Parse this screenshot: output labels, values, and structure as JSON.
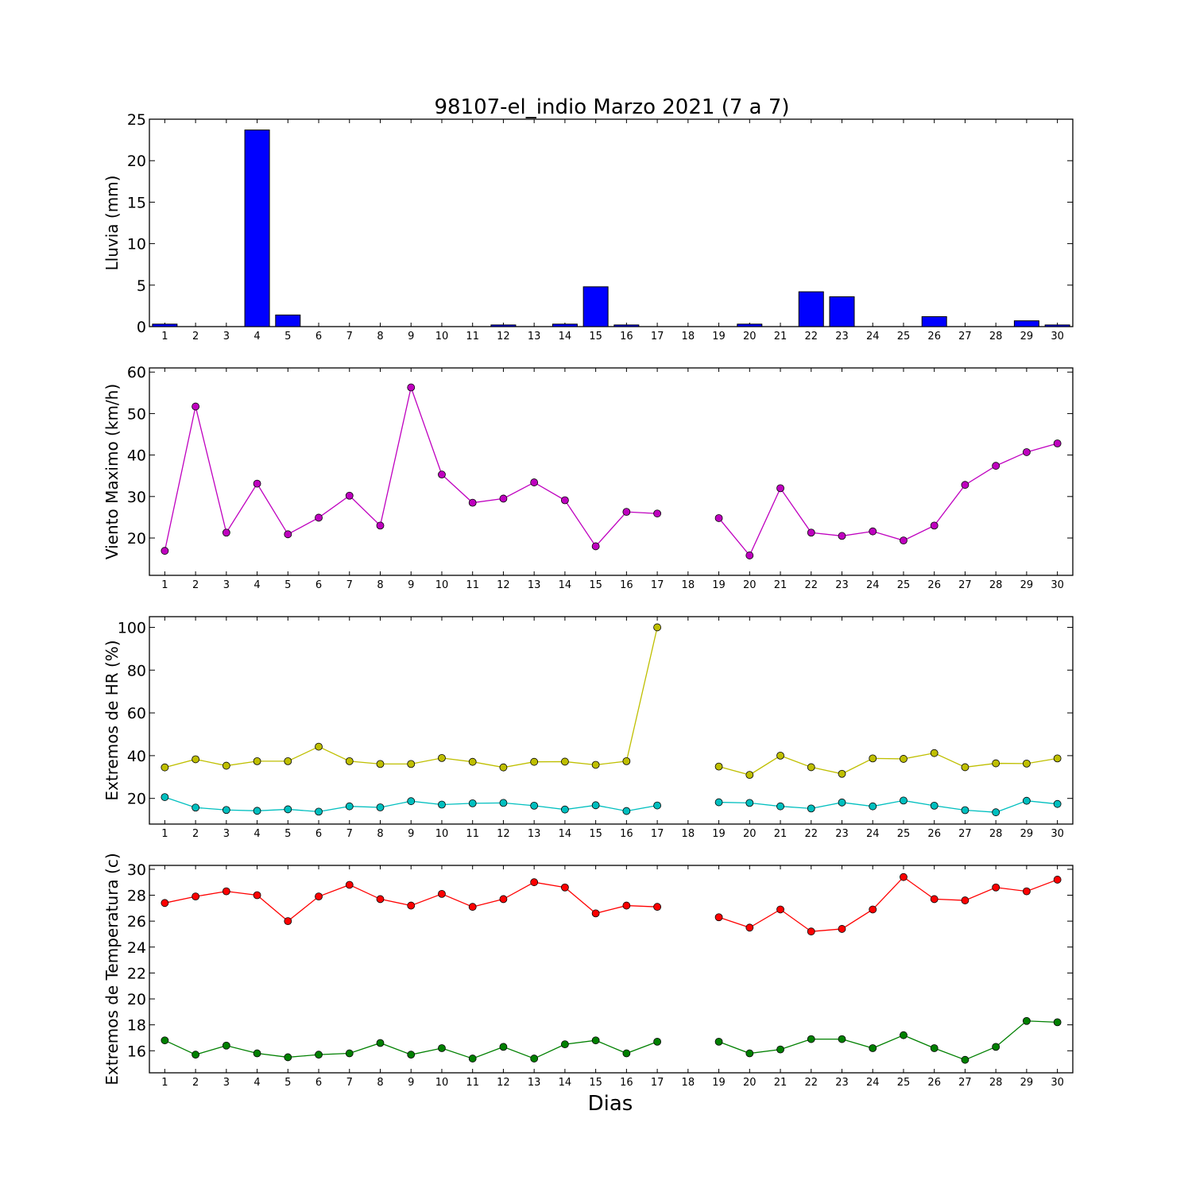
{
  "figure_title": "98107-el_indio Marzo 2021  (7 a 7)",
  "xlabel": "Dias",
  "colors": {
    "rain": "#0000ff",
    "wind": "#bf00bf",
    "hr_max": "#bfbf00",
    "hr_min": "#00bfbf",
    "temp_max": "#ff0000",
    "temp_min": "#008000"
  },
  "chart_data": [
    {
      "type": "bar",
      "ylabel": "Lluvia (mm)",
      "ylim": [
        0,
        25
      ],
      "yticks": [
        0,
        5,
        10,
        15,
        20,
        25
      ],
      "categories": [
        "1",
        "2",
        "3",
        "4",
        "5",
        "6",
        "7",
        "8",
        "9",
        "10",
        "11",
        "12",
        "13",
        "14",
        "15",
        "16",
        "17",
        "18",
        "19",
        "20",
        "21",
        "22",
        "23",
        "24",
        "25",
        "26",
        "27",
        "28",
        "29",
        "30"
      ],
      "values": [
        0.3,
        0,
        0,
        23.7,
        1.4,
        0,
        0,
        0,
        0,
        0,
        0,
        0.2,
        0,
        0.3,
        4.8,
        0.2,
        0,
        0,
        0,
        0.3,
        0,
        4.2,
        3.6,
        0,
        0,
        1.2,
        0,
        0,
        0.7,
        0.2
      ],
      "series": [
        {
          "color_key": "rain"
        }
      ]
    },
    {
      "type": "line",
      "ylabel": "Viento Maximo (km/h)",
      "ylim": [
        11,
        61
      ],
      "yticks": [
        20,
        30,
        40,
        50,
        60
      ],
      "categories": [
        "1",
        "2",
        "3",
        "4",
        "5",
        "6",
        "7",
        "8",
        "9",
        "10",
        "11",
        "12",
        "13",
        "14",
        "15",
        "16",
        "17",
        "18",
        "19",
        "20",
        "21",
        "22",
        "23",
        "24",
        "25",
        "26",
        "27",
        "28",
        "29",
        "30"
      ],
      "series": [
        {
          "color_key": "wind",
          "values": [
            16.9,
            51.7,
            21.3,
            33.1,
            20.9,
            24.9,
            30.2,
            23.0,
            56.3,
            35.3,
            28.5,
            29.5,
            33.4,
            29.1,
            18.0,
            26.3,
            25.9,
            null,
            24.8,
            15.8,
            32.0,
            21.3,
            20.5,
            21.6,
            19.4,
            23.0,
            32.8,
            37.4,
            40.7,
            42.8
          ]
        }
      ]
    },
    {
      "type": "line",
      "ylabel": "Extremos de HR (%)",
      "ylim": [
        8,
        105
      ],
      "yticks": [
        20,
        40,
        60,
        80,
        100
      ],
      "categories": [
        "1",
        "2",
        "3",
        "4",
        "5",
        "6",
        "7",
        "8",
        "9",
        "10",
        "11",
        "12",
        "13",
        "14",
        "15",
        "16",
        "17",
        "18",
        "19",
        "20",
        "21",
        "22",
        "23",
        "24",
        "25",
        "26",
        "27",
        "28",
        "29",
        "30"
      ],
      "series": [
        {
          "color_key": "hr_max",
          "values": [
            34.5,
            38.3,
            35.3,
            37.4,
            37.4,
            44.2,
            37.4,
            36.1,
            36.1,
            38.9,
            37.1,
            34.5,
            37.1,
            37.2,
            35.7,
            37.4,
            100,
            null,
            34.9,
            31.0,
            40.0,
            34.6,
            31.5,
            38.7,
            38.5,
            41.2,
            34.6,
            36.4,
            36.3,
            38.7
          ]
        },
        {
          "color_key": "hr_min",
          "values": [
            20.6,
            15.7,
            14.6,
            14.2,
            14.9,
            13.8,
            16.3,
            15.8,
            18.7,
            17.1,
            17.7,
            17.9,
            16.6,
            14.8,
            16.8,
            14.1,
            16.7,
            null,
            18.2,
            17.9,
            16.3,
            15.3,
            18.1,
            16.3,
            19.0,
            16.6,
            14.5,
            13.5,
            18.9,
            17.4
          ]
        }
      ]
    },
    {
      "type": "line",
      "ylabel": "Extremos de Temperatura (c)",
      "ylim": [
        14.3,
        30.3
      ],
      "yticks": [
        16,
        18,
        20,
        22,
        24,
        26,
        28,
        30
      ],
      "categories": [
        "1",
        "2",
        "3",
        "4",
        "5",
        "6",
        "7",
        "8",
        "9",
        "10",
        "11",
        "12",
        "13",
        "14",
        "15",
        "16",
        "17",
        "18",
        "19",
        "20",
        "21",
        "22",
        "23",
        "24",
        "25",
        "26",
        "27",
        "28",
        "29",
        "30"
      ],
      "series": [
        {
          "color_key": "temp_max",
          "values": [
            27.4,
            27.9,
            28.3,
            28.0,
            26.0,
            27.9,
            28.8,
            27.7,
            27.2,
            28.1,
            27.1,
            27.7,
            29.0,
            28.6,
            26.6,
            27.2,
            27.1,
            null,
            26.3,
            25.5,
            26.9,
            25.2,
            25.4,
            26.9,
            29.4,
            27.7,
            27.6,
            28.6,
            28.3,
            29.2
          ]
        },
        {
          "color_key": "temp_min",
          "values": [
            16.8,
            15.7,
            16.4,
            15.8,
            15.5,
            15.7,
            15.8,
            16.6,
            15.7,
            16.2,
            15.4,
            16.3,
            15.4,
            16.5,
            16.8,
            15.8,
            16.7,
            null,
            16.7,
            15.8,
            16.1,
            16.9,
            16.9,
            16.2,
            17.2,
            16.2,
            15.3,
            16.3,
            18.3,
            18.2
          ]
        }
      ]
    }
  ]
}
